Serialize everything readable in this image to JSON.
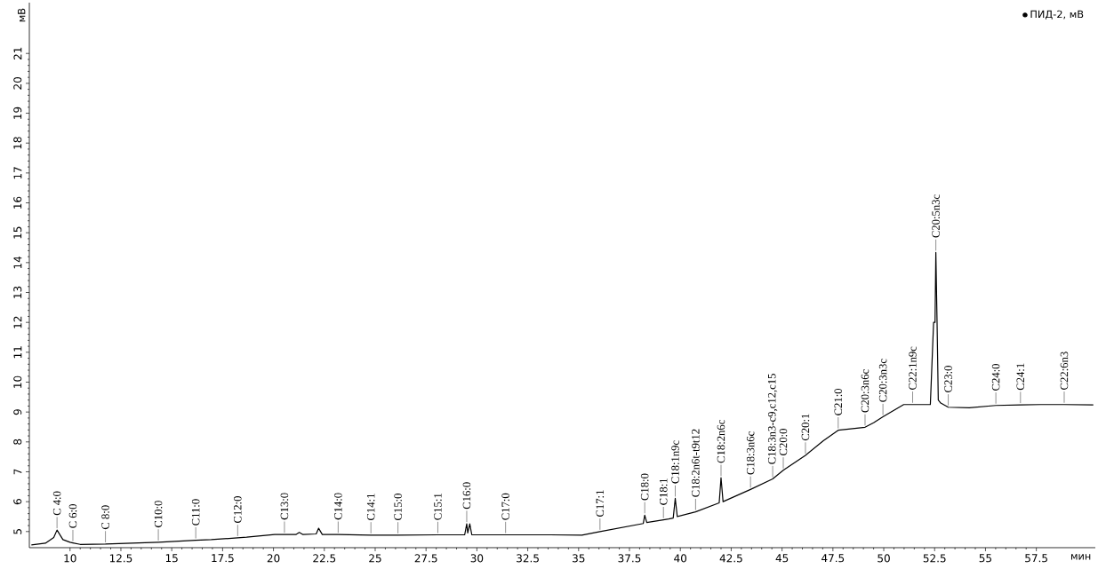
{
  "chart_data": {
    "type": "line",
    "xlabel": "мин",
    "ylabel": "мВ",
    "xlim": [
      8.0,
      60.4
    ],
    "ylim": [
      4.46,
      22.7
    ],
    "xticks": [
      10,
      12.5,
      15,
      17.5,
      20,
      22.5,
      25,
      27.5,
      30,
      32.5,
      35,
      37.5,
      40,
      42.5,
      45,
      47.5,
      50,
      52.5,
      55,
      57.5
    ],
    "yticks": [
      5,
      6,
      7,
      8,
      9,
      10,
      11,
      12,
      13,
      14,
      15,
      16,
      17,
      18,
      19,
      20,
      21
    ],
    "legend": "top right",
    "series": [
      {
        "name": "ПИД-2, мВ",
        "color": "#000000",
        "x": [
          8.1,
          8.79,
          9.2,
          9.36,
          9.65,
          10.0,
          10.14,
          10.5,
          11.74,
          14.34,
          16.18,
          16.94,
          18.24,
          18.68,
          20.06,
          20.54,
          21.1,
          21.27,
          21.45,
          22.1,
          22.22,
          22.4,
          23.18,
          24.79,
          25.0,
          26.12,
          28.08,
          29.4,
          29.5,
          29.55,
          29.65,
          29.75,
          31.41,
          33.6,
          35.16,
          36.05,
          38.18,
          38.25,
          38.35,
          39.17,
          39.43,
          39.65,
          39.75,
          39.85,
          40.75,
          41.91,
          42.0,
          42.1,
          43.45,
          44.54,
          45.06,
          46.15,
          47.03,
          47.76,
          49.08,
          49.5,
          49.96,
          50.98,
          51.42,
          52.29,
          52.45,
          52.52,
          52.56,
          52.62,
          52.68,
          52.8,
          53.17,
          54.2,
          55.51,
          56.72,
          57.7,
          58.87,
          60.3
        ],
        "values": [
          4.55,
          4.61,
          4.8,
          5.05,
          4.73,
          4.64,
          4.62,
          4.57,
          4.58,
          4.64,
          4.71,
          4.73,
          4.79,
          4.81,
          4.9,
          4.9,
          4.9,
          4.97,
          4.9,
          4.92,
          5.11,
          4.9,
          4.9,
          4.88,
          4.88,
          4.88,
          4.89,
          4.89,
          5.26,
          4.95,
          5.26,
          4.89,
          4.89,
          4.89,
          4.88,
          5.0,
          5.27,
          5.55,
          5.3,
          5.39,
          5.42,
          5.45,
          6.11,
          5.5,
          5.66,
          5.96,
          6.8,
          6.0,
          6.41,
          6.76,
          7.05,
          7.55,
          8.04,
          8.39,
          8.49,
          8.64,
          8.84,
          9.25,
          9.25,
          9.25,
          12.0,
          12.0,
          14.34,
          12.0,
          9.4,
          9.3,
          9.16,
          9.14,
          9.22,
          9.24,
          9.25,
          9.25,
          9.24
        ]
      }
    ],
    "annotations": [
      {
        "text": "C 4:0",
        "x": 9.36,
        "y": 5.05
      },
      {
        "text": "C 6:0",
        "x": 10.14,
        "y": 4.62
      },
      {
        "text": "C 8:0",
        "x": 11.74,
        "y": 4.58
      },
      {
        "text": "C10:0",
        "x": 14.34,
        "y": 4.64
      },
      {
        "text": "C11:0",
        "x": 16.18,
        "y": 4.71
      },
      {
        "text": "C12:0",
        "x": 18.24,
        "y": 4.79
      },
      {
        "text": "C13:0",
        "x": 20.54,
        "y": 4.9
      },
      {
        "text": "C14:0",
        "x": 23.18,
        "y": 4.9
      },
      {
        "text": "C14:1",
        "x": 24.79,
        "y": 4.88
      },
      {
        "text": "C15:0",
        "x": 26.12,
        "y": 4.88
      },
      {
        "text": "C15:1",
        "x": 28.08,
        "y": 4.89
      },
      {
        "text": "C16:0",
        "x": 29.5,
        "y": 5.26
      },
      {
        "text": "C17:0",
        "x": 31.41,
        "y": 4.89
      },
      {
        "text": "C17:1",
        "x": 36.05,
        "y": 5.0
      },
      {
        "text": "C18:0",
        "x": 38.25,
        "y": 5.55
      },
      {
        "text": "C18:1",
        "x": 39.17,
        "y": 5.39
      },
      {
        "text": "C18:1n9c",
        "x": 39.75,
        "y": 6.11
      },
      {
        "text": "C18:2n6t-t9t12",
        "x": 40.75,
        "y": 5.66
      },
      {
        "text": "C18:2n6c",
        "x": 42.0,
        "y": 6.8
      },
      {
        "text": "C18:3n6c",
        "x": 43.45,
        "y": 6.41
      },
      {
        "text": "C18:3n3-c9,c12,c15",
        "x": 44.54,
        "y": 6.76
      },
      {
        "text": "C20:0",
        "x": 45.06,
        "y": 7.05
      },
      {
        "text": "C20:1",
        "x": 46.15,
        "y": 7.55
      },
      {
        "text": "C21:0",
        "x": 47.76,
        "y": 8.39
      },
      {
        "text": "C20:3n6c",
        "x": 49.08,
        "y": 8.49
      },
      {
        "text": "C20:3n3c",
        "x": 49.96,
        "y": 8.84
      },
      {
        "text": "C22:1n9c",
        "x": 51.42,
        "y": 9.25
      },
      {
        "text": "C20:5n3c",
        "x": 52.56,
        "y": 14.34
      },
      {
        "text": "C23:0",
        "x": 53.17,
        "y": 9.16
      },
      {
        "text": "C24:0",
        "x": 55.51,
        "y": 9.22
      },
      {
        "text": "C24:1",
        "x": 56.72,
        "y": 9.24
      },
      {
        "text": "C22:6n3",
        "x": 58.87,
        "y": 9.25
      }
    ]
  }
}
